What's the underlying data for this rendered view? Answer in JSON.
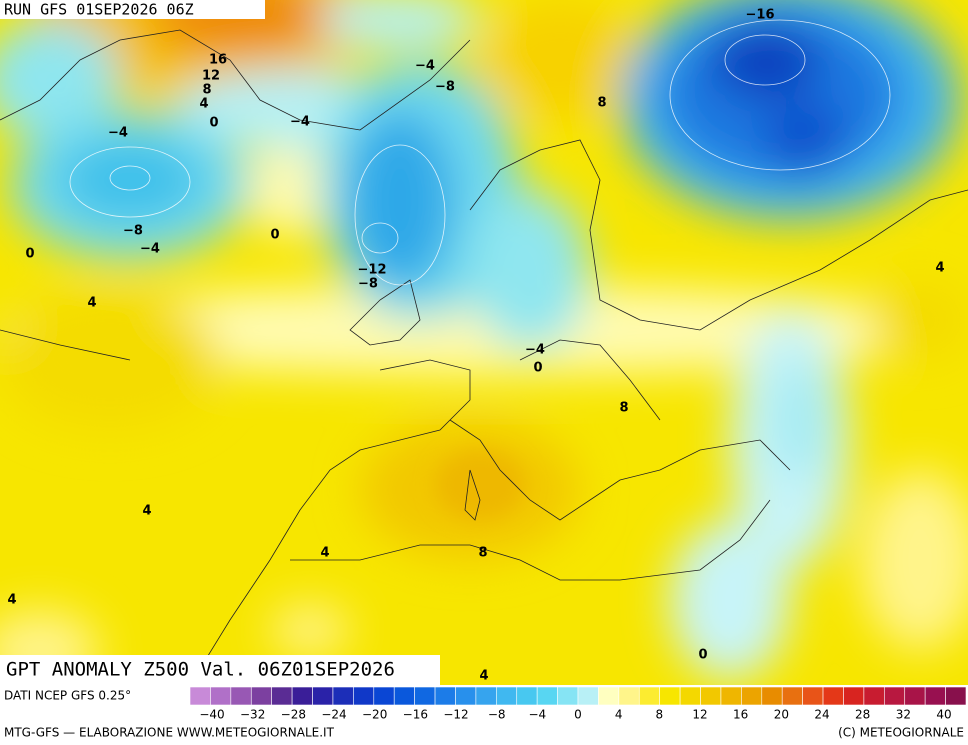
{
  "header": {
    "title": "RUN GFS 01SEP2026 06Z"
  },
  "map": {
    "contour_labels": [
      "−16",
      "16",
      "12",
      "8",
      "4",
      "0",
      "−4",
      "−4",
      "−4",
      "−8",
      "8",
      "−8",
      "−4",
      "0",
      "0",
      "−12",
      "−8",
      "4",
      "4",
      "−4",
      "0",
      "8",
      "4",
      "4",
      "8",
      "4",
      "0",
      "4"
    ]
  },
  "footer": {
    "title": "GPT ANOMALY Z500 Val. 06Z01SEP2026",
    "source": "DATI NCEP GFS 0.25°",
    "credit": "MTG-GFS — ELABORAZIONE WWW.METEOGIORNALE.IT",
    "copyright": "(C) METEOGIORNALE"
  },
  "colorbar": {
    "labels": [
      "−40",
      "−32",
      "−28",
      "−24",
      "−20",
      "−16",
      "−12",
      "−8",
      "−4",
      "0",
      "4",
      "8",
      "12",
      "16",
      "20",
      "24",
      "28",
      "32",
      "40"
    ]
  }
}
